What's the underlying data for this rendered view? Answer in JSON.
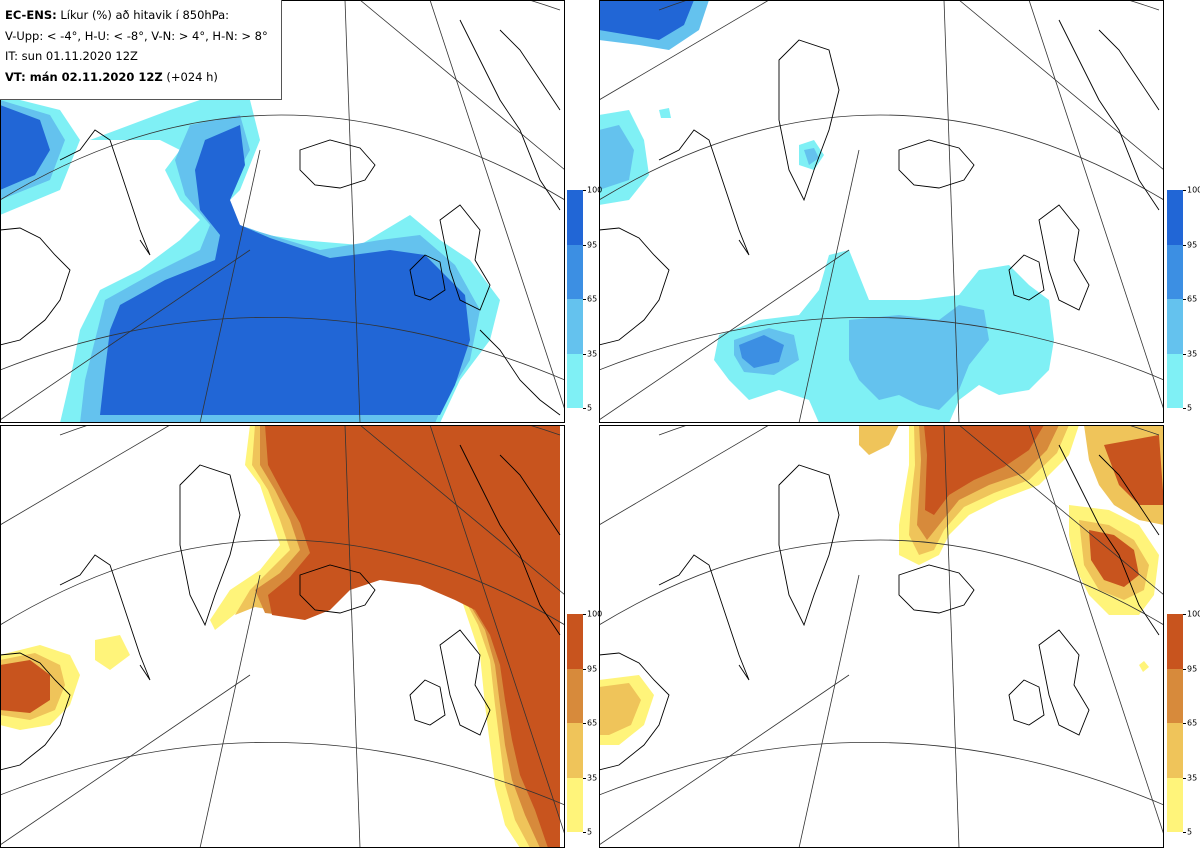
{
  "title": {
    "line1_bold": "EC-ENS:",
    "line1_rest": " Líkur (%) að hitavik í 850hPa:",
    "line2": "V-Upp: < -4°, H-U: < -8°, V-N: > 4°, H-N: > 8°",
    "line3": "IT: sun 01.11.2020 12Z",
    "line4_bold": "VT: mán 02.11.2020 12Z",
    "line4_rest": " (+024 h)"
  },
  "panels": [
    {
      "id": "V-Upp",
      "palette": "cold"
    },
    {
      "id": "H-U",
      "palette": "cold"
    },
    {
      "id": "V-N",
      "palette": "warm"
    },
    {
      "id": "H-N",
      "palette": "warm"
    }
  ],
  "colorbar": {
    "ticks": [
      "100",
      "95",
      "65",
      "35",
      "5"
    ],
    "cold_colors": [
      "#2166d6",
      "#3c8fe3",
      "#64c2ee",
      "#7ff0f5"
    ],
    "warm_colors": [
      "#c8541e",
      "#d78a3b",
      "#efc45a",
      "#fff47a"
    ]
  },
  "colors": {
    "coast": "#000000",
    "grid": "#333333",
    "frame": "#000000"
  }
}
